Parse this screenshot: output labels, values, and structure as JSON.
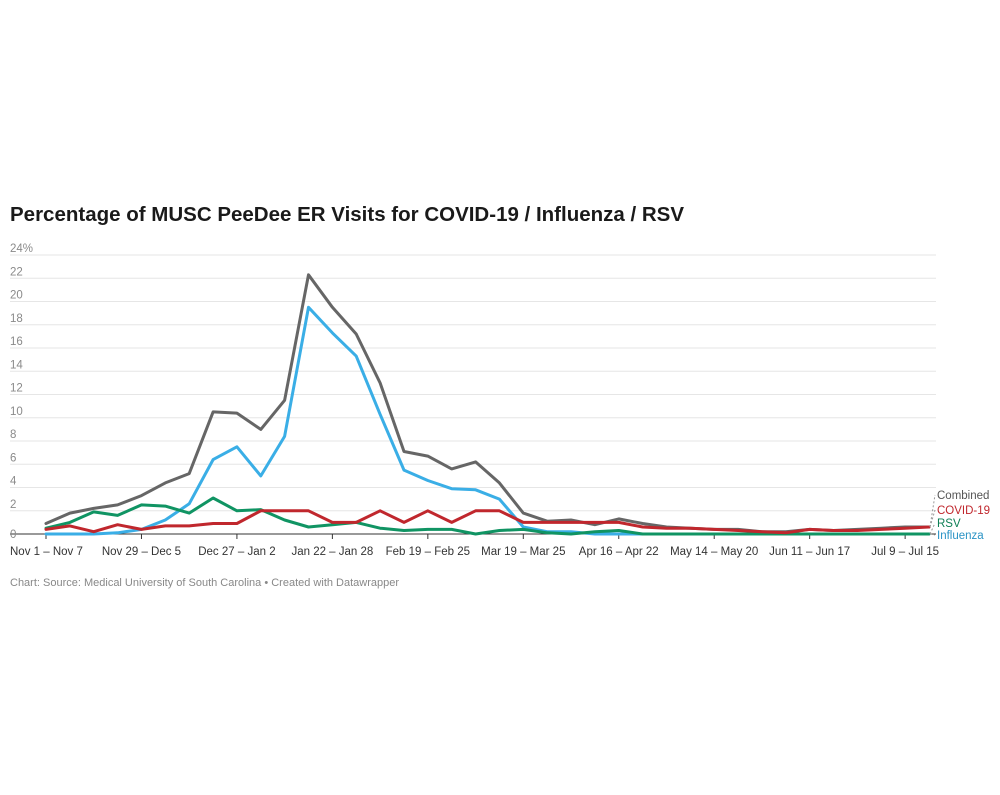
{
  "title": "Percentage of MUSC PeeDee ER Visits for COVID-19 / Influenza / RSV",
  "footer": "Chart: Source: Medical University of South Carolina • Created with Datawrapper",
  "chart_data": {
    "type": "line",
    "title": "Percentage of MUSC PeeDee ER Visits for COVID-19 / Influenza / RSV",
    "xlabel": "",
    "ylabel": "",
    "ylim": [
      0,
      24
    ],
    "yticks": [
      "0",
      "2",
      "4",
      "6",
      "8",
      "10",
      "12",
      "14",
      "16",
      "18",
      "20",
      "22",
      "24%"
    ],
    "x_tick_labels": [
      {
        "index": 0,
        "label": "Nov 1 – Nov 7"
      },
      {
        "index": 4,
        "label": "Nov 29 – Dec 5"
      },
      {
        "index": 8,
        "label": "Dec 27 – Jan 2"
      },
      {
        "index": 12,
        "label": "Jan 22 – Jan 28"
      },
      {
        "index": 16,
        "label": "Feb 19 – Feb 25"
      },
      {
        "index": 20,
        "label": "Mar 19 – Mar 25"
      },
      {
        "index": 24,
        "label": "Apr 16 – Apr 22"
      },
      {
        "index": 28,
        "label": "May 14 – May 20"
      },
      {
        "index": 32,
        "label": "Jun 11 – Jun 17"
      },
      {
        "index": 36,
        "label": "Jul 9 – Jul 15"
      }
    ],
    "grid": true,
    "legend": "labels at right end of lines",
    "series": [
      {
        "name": "Combined",
        "color": "#666666",
        "values": [
          0.9,
          1.8,
          2.2,
          2.5,
          3.3,
          4.4,
          5.2,
          10.5,
          10.4,
          9.0,
          11.5,
          22.3,
          19.5,
          17.2,
          13.0,
          7.1,
          6.7,
          5.6,
          6.2,
          4.4,
          1.8,
          1.1,
          1.2,
          0.8,
          1.3,
          0.9,
          0.6,
          0.5,
          0.4,
          0.4,
          0.2,
          0.2,
          0.4,
          0.3,
          0.4,
          0.5,
          0.6,
          0.6
        ]
      },
      {
        "name": "COVID-19",
        "color": "#c0272d",
        "values": [
          0.4,
          0.7,
          0.2,
          0.8,
          0.4,
          0.7,
          0.7,
          0.9,
          0.9,
          2.0,
          2.0,
          2.0,
          1.0,
          1.0,
          2.0,
          1.0,
          2.0,
          1.0,
          2.0,
          2.0,
          1.0,
          1.0,
          1.0,
          1.0,
          1.0,
          0.6,
          0.5,
          0.5,
          0.4,
          0.3,
          0.2,
          0.1,
          0.4,
          0.3,
          0.3,
          0.4,
          0.5,
          0.6
        ]
      },
      {
        "name": "RSV",
        "color": "#109463",
        "values": [
          0.5,
          1.0,
          1.9,
          1.6,
          2.5,
          2.4,
          1.8,
          3.1,
          2.0,
          2.1,
          1.2,
          0.6,
          0.8,
          1.0,
          0.5,
          0.3,
          0.4,
          0.4,
          0.0,
          0.3,
          0.4,
          0.1,
          0.0,
          0.2,
          0.3,
          0.0,
          0.0,
          0.0,
          0.0,
          0.0,
          0.0,
          0.0,
          0.0,
          0.0,
          0.0,
          0.0,
          0.0,
          0.0
        ]
      },
      {
        "name": "Influenza",
        "color": "#3aaee6",
        "values": [
          0.0,
          0.0,
          0.0,
          0.1,
          0.4,
          1.2,
          2.6,
          6.4,
          7.5,
          5.0,
          8.4,
          19.5,
          17.3,
          15.3,
          10.3,
          5.5,
          4.6,
          3.9,
          3.8,
          3.0,
          0.6,
          0.2,
          0.2,
          0.0,
          0.0,
          0.0,
          0.0,
          0.0,
          0.0,
          0.0,
          0.0,
          0.0,
          0.0,
          0.0,
          0.0,
          0.0,
          0.0,
          0.0
        ]
      }
    ]
  }
}
